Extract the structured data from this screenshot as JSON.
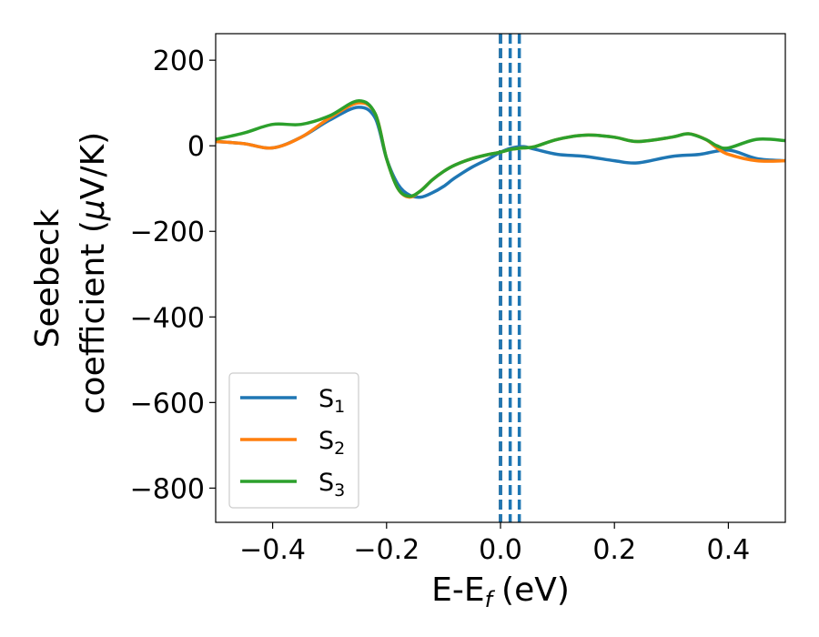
{
  "chart_data": {
    "type": "line",
    "xlabel": "E-E",
    "xlabel_sub": "f",
    "xlabel_unit": "(eV)",
    "ylabel_line1": "Seebeck",
    "ylabel_line2": "coefficient  (",
    "ylabel_mu": "μ",
    "ylabel_unit": "V/K)",
    "xlim": [
      -0.5,
      0.5
    ],
    "ylim": [
      -880,
      262
    ],
    "xticks": [
      -0.4,
      -0.2,
      0.0,
      0.2,
      0.4
    ],
    "xtick_labels": [
      "−0.4",
      "−0.2",
      "0.0",
      "0.2",
      "0.4"
    ],
    "yticks": [
      200,
      0,
      -200,
      -400,
      -600,
      -800
    ],
    "ytick_labels": [
      "200",
      "0",
      "−200",
      "−400",
      "−600",
      "−800"
    ],
    "legend_position": "lower-left",
    "colors": {
      "S1": "#1f77b4",
      "S2": "#ff7f0e",
      "S3": "#2ca02c",
      "fermi": "#000000"
    },
    "series": [
      {
        "name": "S",
        "sub": "1",
        "color": "#1f77b4",
        "x": [
          -0.5,
          -0.45,
          -0.4,
          -0.35,
          -0.3,
          -0.25,
          -0.22,
          -0.2,
          -0.18,
          -0.16,
          -0.14,
          -0.12,
          -0.1,
          -0.08,
          -0.05,
          -0.02,
          0.0,
          0.02,
          0.04,
          0.06,
          0.1,
          0.15,
          0.2,
          0.24,
          0.3,
          0.35,
          0.4,
          0.45,
          0.5
        ],
        "y": [
          10,
          5,
          -5,
          20,
          60,
          90,
          65,
          -30,
          -90,
          -115,
          -120,
          -110,
          -95,
          -75,
          -50,
          -30,
          -15,
          -5,
          -2,
          -8,
          -20,
          -25,
          -35,
          -40,
          -25,
          -20,
          -10,
          -30,
          -35
        ]
      },
      {
        "name": "S",
        "sub": "2",
        "color": "#ff7f0e",
        "x": [
          -0.5,
          -0.45,
          -0.4,
          -0.35,
          -0.3,
          -0.25,
          -0.22,
          -0.2,
          -0.18,
          -0.16,
          -0.14,
          -0.12,
          -0.1,
          -0.08,
          -0.05,
          -0.02,
          0.0,
          0.02,
          0.04,
          0.06,
          0.1,
          0.15,
          0.2,
          0.24,
          0.3,
          0.33,
          0.36,
          0.38,
          0.4,
          0.45,
          0.5
        ],
        "y": [
          10,
          5,
          -5,
          20,
          65,
          100,
          75,
          -30,
          -100,
          -120,
          -105,
          -80,
          -60,
          -45,
          -30,
          -20,
          -15,
          -8,
          -5,
          -2,
          15,
          25,
          20,
          10,
          20,
          28,
          15,
          -5,
          -20,
          -35,
          -35
        ]
      },
      {
        "name": "S",
        "sub": "3",
        "color": "#2ca02c",
        "x": [
          -0.5,
          -0.45,
          -0.4,
          -0.35,
          -0.3,
          -0.25,
          -0.22,
          -0.2,
          -0.18,
          -0.16,
          -0.14,
          -0.12,
          -0.1,
          -0.08,
          -0.05,
          -0.02,
          0.0,
          0.02,
          0.04,
          0.06,
          0.1,
          0.15,
          0.2,
          0.24,
          0.3,
          0.33,
          0.36,
          0.38,
          0.4,
          0.45,
          0.5
        ],
        "y": [
          15,
          30,
          50,
          50,
          70,
          105,
          75,
          -30,
          -100,
          -118,
          -105,
          -80,
          -60,
          -45,
          -30,
          -20,
          -15,
          -8,
          -5,
          -2,
          15,
          25,
          20,
          10,
          20,
          28,
          15,
          0,
          -5,
          15,
          12
        ]
      }
    ],
    "vlines": [
      {
        "x": 0.0,
        "color": "#000000",
        "style": "dashed"
      },
      {
        "x": 0.0,
        "color": "#1f77b4",
        "style": "dashed"
      },
      {
        "x": 0.017,
        "color": "#1f77b4",
        "style": "dashed"
      },
      {
        "x": 0.033,
        "color": "#1f77b4",
        "style": "dashed"
      }
    ]
  }
}
